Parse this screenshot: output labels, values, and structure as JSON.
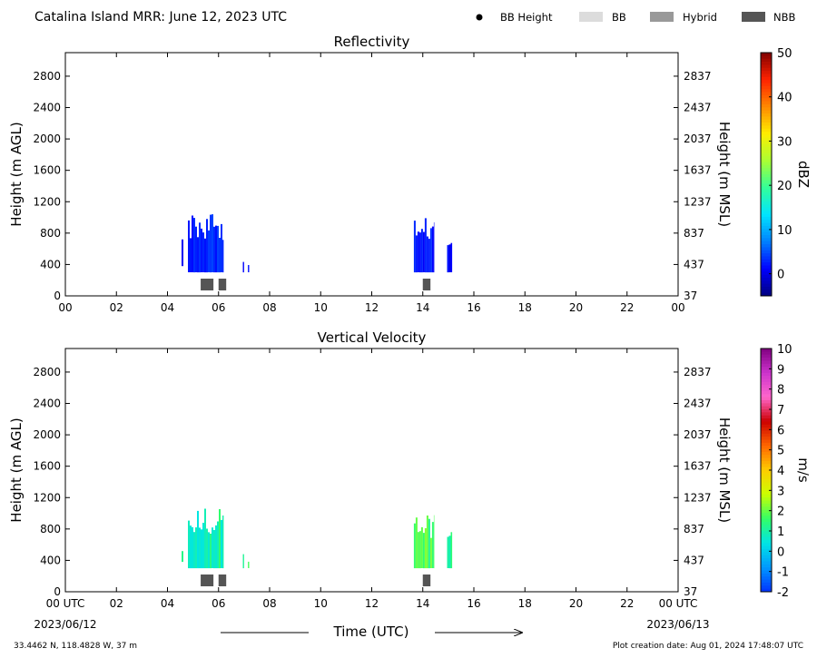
{
  "header": {
    "title": "Catalina Island MRR:  June 12, 2023 UTC",
    "legend": [
      {
        "label": "BB Height",
        "kind": "dot",
        "color": "#000000"
      },
      {
        "label": "BB",
        "kind": "box",
        "color": "#dcdcdc"
      },
      {
        "label": "Hybrid",
        "kind": "box",
        "color": "#999999"
      },
      {
        "label": "NBB",
        "kind": "box",
        "color": "#555555"
      }
    ]
  },
  "footer": {
    "location": "33.4462 N, 118.4828 W, 37 m",
    "created": "Plot creation date: Aug 01, 2024 17:48:07 UTC",
    "date_start": "2023/06/12",
    "date_end": "2023/06/13"
  },
  "chart_data": [
    {
      "type": "heatmap",
      "title": "Reflectivity",
      "xlabel": "",
      "ylabel": "Height (m AGL)",
      "ylabel_right": "Height (m MSL)",
      "xlim": [
        0,
        24
      ],
      "ylim": [
        0,
        3100
      ],
      "x_ticks": [
        "00",
        "02",
        "04",
        "06",
        "08",
        "10",
        "12",
        "14",
        "16",
        "18",
        "20",
        "22",
        "00"
      ],
      "y_ticks": [
        0,
        400,
        800,
        1200,
        1600,
        2000,
        2400,
        2800
      ],
      "y_ticks_right": [
        37,
        437,
        837,
        1237,
        1637,
        2037,
        2437,
        2837
      ],
      "colorbar": {
        "label": "dBZ",
        "range": [
          -5,
          50
        ],
        "ticks": [
          0,
          10,
          20,
          30,
          40,
          50
        ],
        "stops": [
          "#000080",
          "#0000ff",
          "#0080ff",
          "#00e5ff",
          "#33ff99",
          "#aaff33",
          "#ffee00",
          "#ff8800",
          "#ff2200",
          "#800000"
        ]
      },
      "rain_periods": [
        {
          "start": 4.55,
          "end": 4.62,
          "bottom": 380,
          "top": 720,
          "value": 2
        },
        {
          "start": 4.8,
          "end": 6.2,
          "bottom": 300,
          "top": 1050,
          "value": 3
        },
        {
          "start": 6.95,
          "end": 7.0,
          "bottom": 300,
          "top": 480,
          "value": 1
        },
        {
          "start": 7.15,
          "end": 7.2,
          "bottom": 300,
          "top": 400,
          "value": 1
        },
        {
          "start": 13.65,
          "end": 14.45,
          "bottom": 300,
          "top": 1000,
          "value": 2
        },
        {
          "start": 14.95,
          "end": 15.15,
          "bottom": 300,
          "top": 780,
          "value": 1
        }
      ],
      "bb_type_flags": [
        {
          "start": 5.3,
          "end": 5.8,
          "type": "NBB"
        },
        {
          "start": 6.0,
          "end": 6.3,
          "type": "NBB"
        },
        {
          "start": 14.0,
          "end": 14.3,
          "type": "NBB"
        }
      ]
    },
    {
      "type": "heatmap",
      "title": "Vertical Velocity",
      "xlabel": "Time (UTC)",
      "ylabel": "Height (m AGL)",
      "ylabel_right": "Height (m MSL)",
      "xlim": [
        0,
        24
      ],
      "ylim": [
        0,
        3100
      ],
      "x_ticks": [
        "00 UTC",
        "02",
        "04",
        "06",
        "08",
        "10",
        "12",
        "14",
        "16",
        "18",
        "20",
        "22",
        "00 UTC"
      ],
      "y_ticks": [
        0,
        400,
        800,
        1200,
        1600,
        2000,
        2400,
        2800
      ],
      "y_ticks_right": [
        37,
        437,
        837,
        1237,
        1637,
        2037,
        2437,
        2837
      ],
      "colorbar": {
        "label": "m/s",
        "range": [
          -2,
          10
        ],
        "ticks": [
          -2,
          -1,
          0,
          1,
          2,
          3,
          4,
          5,
          6,
          7,
          8,
          9,
          10
        ],
        "stops": [
          "#0033ff",
          "#0099ff",
          "#00e5e5",
          "#33ff66",
          "#ccff00",
          "#ffcc00",
          "#ff6600",
          "#cc0000",
          "#ff66cc",
          "#cc33cc",
          "#800080"
        ]
      },
      "rain_periods": [
        {
          "start": 4.55,
          "end": 4.62,
          "bottom": 380,
          "top": 620,
          "value": 0.8
        },
        {
          "start": 4.8,
          "end": 6.2,
          "bottom": 300,
          "top": 1100,
          "value": 1.0
        },
        {
          "start": 6.95,
          "end": 7.0,
          "bottom": 300,
          "top": 500,
          "value": 1.2
        },
        {
          "start": 7.15,
          "end": 7.2,
          "bottom": 300,
          "top": 400,
          "value": 1.3
        },
        {
          "start": 13.65,
          "end": 14.45,
          "bottom": 300,
          "top": 1000,
          "value": 1.7
        },
        {
          "start": 14.95,
          "end": 15.15,
          "bottom": 300,
          "top": 800,
          "value": 1.0
        }
      ],
      "bb_type_flags": [
        {
          "start": 5.3,
          "end": 5.8,
          "type": "NBB"
        },
        {
          "start": 6.0,
          "end": 6.3,
          "type": "NBB"
        },
        {
          "start": 14.0,
          "end": 14.3,
          "type": "NBB"
        }
      ]
    }
  ]
}
